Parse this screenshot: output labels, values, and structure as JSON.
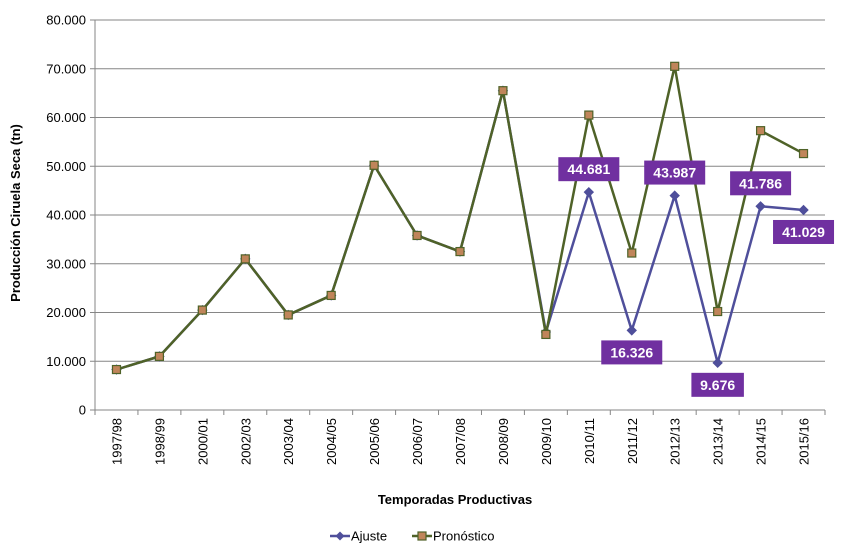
{
  "chart_data": {
    "type": "line",
    "title": "",
    "xlabel": "Temporadas Productivas",
    "ylabel": "Producción Ciruela Seca (tn)",
    "ylim": [
      0,
      80000
    ],
    "yticks": [
      0,
      10000,
      20000,
      30000,
      40000,
      50000,
      60000,
      70000,
      80000
    ],
    "ytick_labels": [
      "0",
      "10.000",
      "20.000",
      "30.000",
      "40.000",
      "50.000",
      "60.000",
      "70.000",
      "80.000"
    ],
    "grid": true,
    "legend_position": "bottom",
    "categories": [
      "1997/98",
      "1998/99",
      "2000/01",
      "2002/03",
      "2003/04",
      "2004/05",
      "2005/06",
      "2006/07",
      "2007/08",
      "2008/09",
      "2009/10",
      "2010/11",
      "2011/12",
      "2012/13",
      "2013/14",
      "2014/15",
      "2015/16"
    ],
    "series": [
      {
        "name": "Ajuste",
        "color": "#4F4F9B",
        "marker": "diamond",
        "values": [
          8300,
          11000,
          20500,
          31000,
          19500,
          23500,
          50200,
          35800,
          32500,
          65500,
          16000,
          44681,
          16326,
          43987,
          9676,
          41786,
          41029
        ]
      },
      {
        "name": "Pronóstico",
        "color": "#4F6228",
        "marker_fill": "#C0855A",
        "marker": "square",
        "values": [
          8300,
          11000,
          20500,
          31000,
          19500,
          23500,
          50200,
          35800,
          32500,
          65500,
          15500,
          60500,
          32200,
          70500,
          20200,
          57300,
          52600
        ]
      }
    ],
    "data_labels": [
      {
        "category": "2010/11",
        "value": 44681,
        "text": "44.681",
        "position": "above"
      },
      {
        "category": "2011/12",
        "value": 16326,
        "text": "16.326",
        "position": "below"
      },
      {
        "category": "2012/13",
        "value": 43987,
        "text": "43.987",
        "position": "above"
      },
      {
        "category": "2013/14",
        "value": 9676,
        "text": "9.676",
        "position": "below"
      },
      {
        "category": "2014/15",
        "value": 41786,
        "text": "41.786",
        "position": "above"
      },
      {
        "category": "2015/16",
        "value": 41029,
        "text": "41.029",
        "position": "below"
      }
    ],
    "data_label_background": "#7030A0"
  }
}
